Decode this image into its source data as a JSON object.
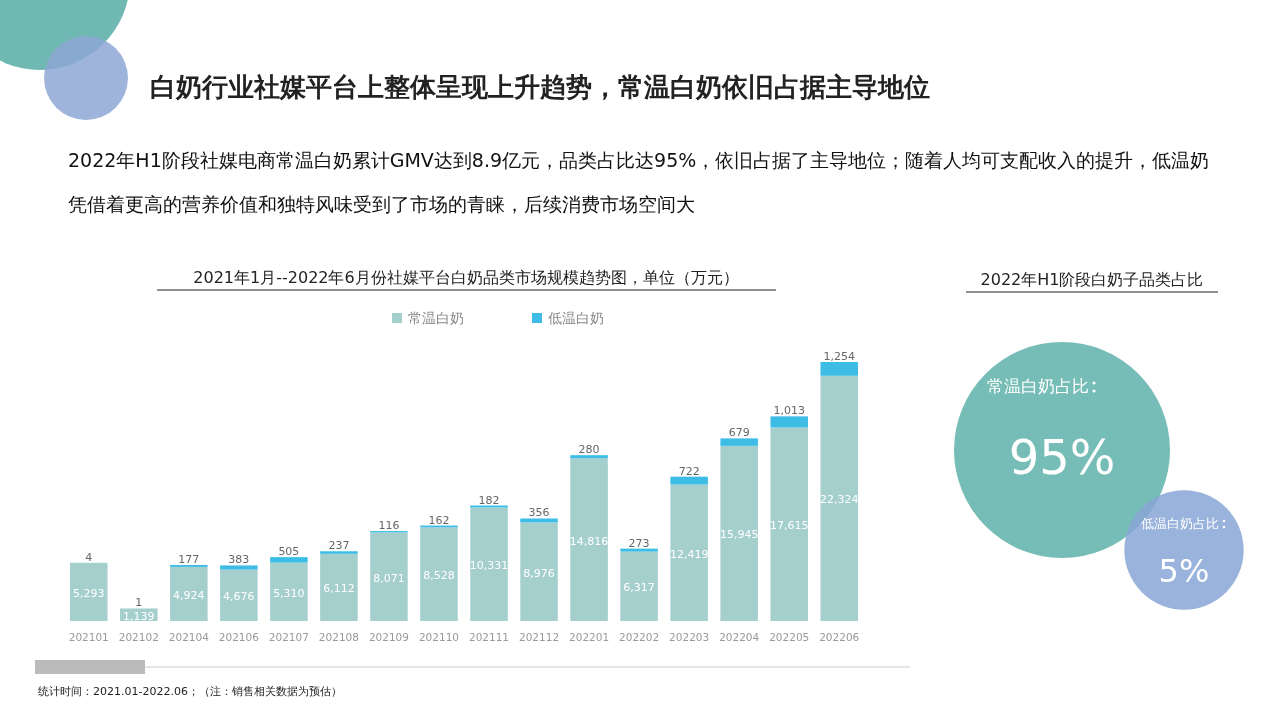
{
  "chart_data": [
    {
      "type": "other",
      "title": "白奶行业社媒平台上整体呈现上升趋势，常温白奶依旧占据主导地位",
      "annotations": [
        "2022年H1阶段社媒电商常温白奶累计GMV达到8.9亿元，品类占比达95%，依旧占据了主导地位；随着人均可支配收入的提升，低温奶凭借着更高的营养价值和独特风味受到了市场的青睐，后续消费市场空间大"
      ]
    },
    {
      "type": "bar",
      "stacked": true,
      "title": "2021年1月--2022年6月份社媒平台白奶品类市场规模趋势图，单位（万元）",
      "categories": [
        "202101",
        "202102",
        "202104",
        "202106",
        "202107",
        "202108",
        "202109",
        "202110",
        "202111",
        "202112",
        "202201",
        "202202",
        "202203",
        "202204",
        "202205",
        "202206"
      ],
      "series": [
        {
          "name": "常温白奶",
          "color": "#a5cfcd",
          "values": [
            5293,
            1139,
            4924,
            4676,
            5310,
            6112,
            8071,
            8528,
            10331,
            8976,
            14816,
            6317,
            12419,
            15945,
            17615,
            22324
          ],
          "value_labels": [
            "5,293",
            "1,139",
            "4,924",
            "4,676",
            "5,310",
            "6,112",
            "8,071",
            "8,528",
            "10,331",
            "8,976",
            "14,816",
            "6,317",
            "12,419",
            "15,945",
            "17,615",
            "22,324"
          ]
        },
        {
          "name": "低温白奶",
          "color": "#3dbde6",
          "values": [
            4,
            1,
            177,
            383,
            505,
            237,
            116,
            162,
            182,
            356,
            280,
            273,
            722,
            679,
            1013,
            1254
          ],
          "value_labels": [
            "4",
            "1",
            "177",
            "383",
            "505",
            "237",
            "116",
            "162",
            "182",
            "356",
            "280",
            "273",
            "722",
            "679",
            "1,013",
            "1,254"
          ]
        }
      ],
      "legend": "top",
      "annotations": [
        "统计时间：2021.01-2022.06；（注：销售相关数据为预估）"
      ]
    },
    {
      "type": "other",
      "title": "2022年H1阶段白奶子品类占比",
      "categories": [
        "常温白奶占比",
        "低温白奶占比"
      ],
      "values": [
        95,
        5
      ],
      "value_labels": [
        "95%",
        "5%"
      ],
      "colors": [
        "#5fb2aa",
        "#88a6d6"
      ]
    }
  ]
}
